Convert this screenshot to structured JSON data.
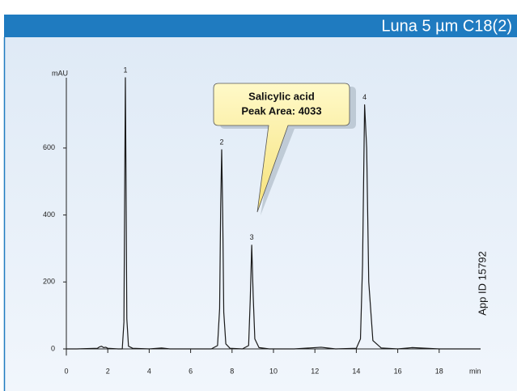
{
  "header": {
    "title": "Luna 5 µm C18(2)"
  },
  "chart_data": {
    "type": "line",
    "xlabel": "min",
    "ylabel": "mAU",
    "xlim": [
      0,
      20
    ],
    "ylim": [
      -20,
      810
    ],
    "xticks": [
      0,
      2,
      4,
      6,
      8,
      10,
      12,
      14,
      16,
      18
    ],
    "yticks": [
      0,
      200,
      400,
      600
    ],
    "series": [
      {
        "color": "#1a1a1a",
        "x": [
          0,
          0.5,
          1.0,
          1.5,
          1.6,
          1.7,
          1.8,
          1.9,
          2.0,
          2.5,
          2.7,
          2.78,
          2.82,
          2.85,
          2.88,
          2.92,
          3.0,
          3.2,
          4.0,
          4.6,
          5.0,
          6.0,
          7.0,
          7.3,
          7.4,
          7.45,
          7.5,
          7.55,
          7.6,
          7.7,
          7.9,
          8.5,
          8.8,
          8.88,
          8.95,
          9.02,
          9.1,
          9.3,
          9.8,
          11,
          12.3,
          13,
          14.0,
          14.2,
          14.3,
          14.4,
          14.5,
          14.6,
          14.8,
          15.2,
          16,
          16.7,
          18,
          20
        ],
        "values": [
          0,
          0,
          1,
          2,
          6,
          8,
          4,
          5,
          2,
          0,
          0,
          80,
          500,
          810,
          520,
          90,
          8,
          2,
          0,
          3,
          0,
          0,
          0,
          10,
          120,
          420,
          595,
          400,
          110,
          15,
          2,
          0,
          10,
          150,
          310,
          160,
          30,
          4,
          0,
          0,
          5,
          0,
          2,
          30,
          250,
          729,
          600,
          200,
          25,
          3,
          0,
          4,
          0,
          0
        ]
      }
    ],
    "peak_labels": [
      {
        "text": "1",
        "x": 2.85,
        "y": 810
      },
      {
        "text": "2",
        "x": 7.5,
        "y": 595
      },
      {
        "text": "3",
        "x": 8.95,
        "y": 310
      },
      {
        "text": "4",
        "x": 14.4,
        "y": 729
      }
    ],
    "callout": [
      "Salicylic acid",
      "Peak Area: 4033"
    ],
    "note": "App ID 15792"
  }
}
